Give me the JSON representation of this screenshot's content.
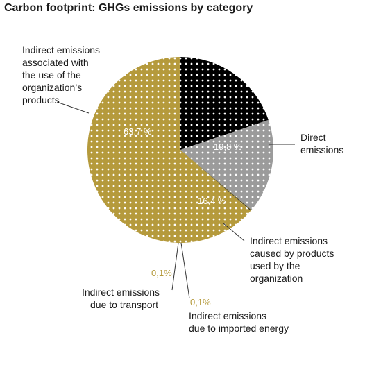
{
  "chart_data": {
    "type": "pie",
    "title": "Carbon footprint: GHGs emissions by category",
    "slices": [
      {
        "label": "Direct emissions",
        "value": 19.8,
        "value_label": "19,8 %",
        "color": "#000000",
        "pattern": "dots",
        "text_color": "#ffffff"
      },
      {
        "label": "Indirect emissions caused by products used by the organization",
        "value": 16.4,
        "value_label": "16,4 %",
        "color": "#9b9b9b",
        "pattern": "dots",
        "text_color": "#ffffff"
      },
      {
        "label": "Indirect emissions due to imported energy",
        "value": 0.1,
        "value_label": "0,1%",
        "color": "#7a6a1e",
        "pattern": "solid",
        "text_color": "#b59a3c"
      },
      {
        "label": "Indirect emissions due to transport",
        "value": 0.1,
        "value_label": "0,1%",
        "color": "#1a1a1a",
        "pattern": "solid",
        "text_color": "#b59a3c"
      },
      {
        "label": "Indirect emissions associated with the use of the organization’s products",
        "value": 63.7,
        "value_label": "63,7 %",
        "color": "#b59a3c",
        "pattern": "dots",
        "text_color": "#ffffff"
      }
    ]
  },
  "labels": {
    "products_use": [
      "Indirect emissions",
      "associated with",
      "the use of the",
      "organization’s",
      "products"
    ],
    "direct": [
      "Direct",
      "emissions"
    ],
    "products_used": [
      "Indirect emissions",
      "caused by products",
      "used by the",
      "organization"
    ],
    "transport": [
      "Indirect emissions",
      "due to transport"
    ],
    "energy": [
      "Indirect emissions",
      "due to imported energy"
    ]
  }
}
